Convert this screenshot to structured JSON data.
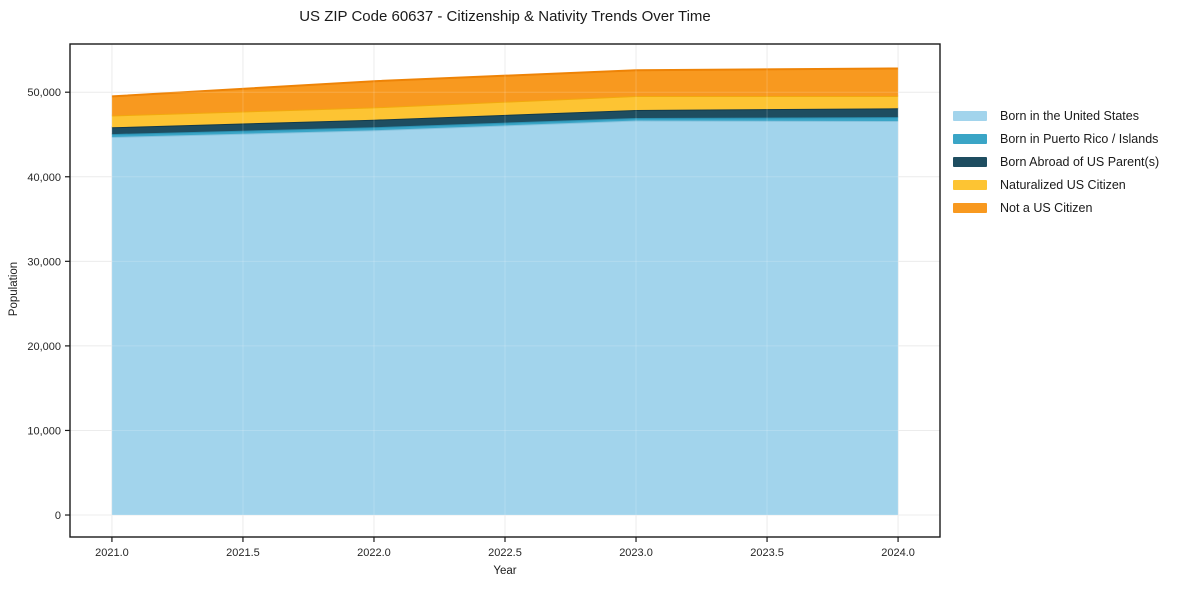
{
  "chart_data": {
    "type": "area",
    "stacked": true,
    "title": "US ZIP Code 60637 - Citizenship & Nativity Trends Over Time",
    "xlabel": "Year",
    "ylabel": "Population",
    "x": [
      2021,
      2022,
      2023,
      2024
    ],
    "series": [
      {
        "name": "Born in the United States",
        "color": "#a2d4ec",
        "edge": "#86c3de",
        "values": [
          44700,
          45500,
          46650,
          46600
        ]
      },
      {
        "name": "Born in Puerto Rico / Islands",
        "color": "#3aa5c6",
        "edge": "#2b91b2",
        "values": [
          350,
          350,
          300,
          450
        ]
      },
      {
        "name": "Born Abroad of US Parent(s)",
        "color": "#1e4d60",
        "edge": "#133a4a",
        "values": [
          800,
          900,
          950,
          1050
        ]
      },
      {
        "name": "Naturalized US Citizen",
        "color": "#fdc433",
        "edge": "#f2a90d",
        "values": [
          1400,
          1450,
          1650,
          1450
        ]
      },
      {
        "name": "Not a US Citizen",
        "color": "#f8991f",
        "edge": "#ee8306",
        "values": [
          2250,
          3100,
          3050,
          3250
        ]
      }
    ],
    "xlim": [
      2020.84,
      2024.16
    ],
    "ylim": [
      -2600,
      55700
    ],
    "xticks": [
      {
        "v": 2021.0,
        "label": "2021.0"
      },
      {
        "v": 2021.5,
        "label": "2021.5"
      },
      {
        "v": 2022.0,
        "label": "2022.0"
      },
      {
        "v": 2022.5,
        "label": "2022.5"
      },
      {
        "v": 2023.0,
        "label": "2023.0"
      },
      {
        "v": 2023.5,
        "label": "2023.5"
      },
      {
        "v": 2024.0,
        "label": "2024.0"
      }
    ],
    "yticks": [
      {
        "v": 0,
        "label": "0"
      },
      {
        "v": 10000,
        "label": "10,000"
      },
      {
        "v": 20000,
        "label": "20,000"
      },
      {
        "v": 30000,
        "label": "30,000"
      },
      {
        "v": 40000,
        "label": "40,000"
      },
      {
        "v": 50000,
        "label": "50,000"
      }
    ],
    "grid": true,
    "grid_color": "#e8e8e8",
    "spine_color": "#1a1a1a",
    "legend_position": "right-outside"
  }
}
